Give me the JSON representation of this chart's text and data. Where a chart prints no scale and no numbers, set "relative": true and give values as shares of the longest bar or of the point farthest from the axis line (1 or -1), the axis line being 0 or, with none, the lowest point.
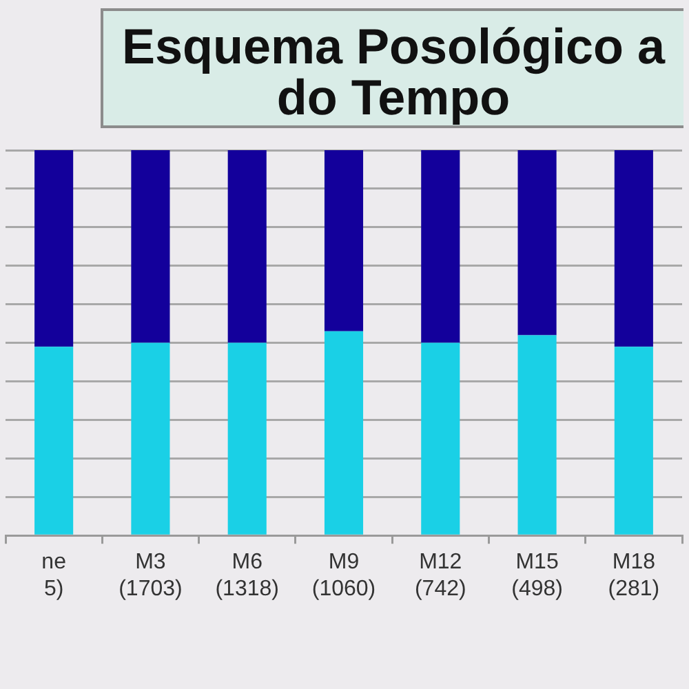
{
  "chart_data": {
    "type": "bar",
    "title": "Esquema Posológico a\ndo Tempo",
    "categories": [
      "ne 5)",
      "M3 (1703)",
      "M6 (1318)",
      "M9 (1060)",
      "M12 (742)",
      "M15 (498)",
      "M18 (281)"
    ],
    "series": [
      {
        "color": "#1ad0e6",
        "values": [
          0.49,
          0.5,
          0.5,
          0.53,
          0.5,
          0.52,
          0.49
        ]
      },
      {
        "color": "#13009b",
        "values": [
          0.51,
          0.5,
          0.5,
          0.47,
          0.5,
          0.48,
          0.51
        ]
      }
    ],
    "stacked": true,
    "relative": true,
    "grid": "y"
  }
}
